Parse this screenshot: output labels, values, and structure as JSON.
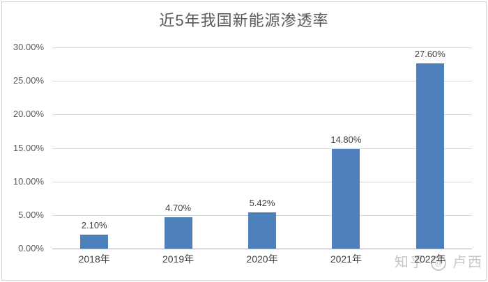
{
  "chart_data": {
    "type": "bar",
    "title": "近5年我国新能源渗透率",
    "categories": [
      "2018年",
      "2019年",
      "2020年",
      "2021年",
      "2022年"
    ],
    "values": [
      2.1,
      4.7,
      5.42,
      14.8,
      27.6
    ],
    "data_labels": [
      "2.10%",
      "4.70%",
      "5.42%",
      "14.80%",
      "27.60%"
    ],
    "yticks": [
      "0.00%",
      "5.00%",
      "10.00%",
      "15.00%",
      "20.00%",
      "25.00%",
      "30.00%"
    ],
    "ytick_step": 5,
    "ylim": [
      0,
      30
    ],
    "xlabel": "",
    "ylabel": "",
    "grid": true,
    "legend": false,
    "bar_color": "#4e81bc"
  },
  "watermark": {
    "brand": "知乎",
    "at": "@",
    "user": "卢西"
  },
  "colors": {
    "bar": "#4e81bc",
    "gridline": "#d9d9d9",
    "axis_line": "#ababab",
    "title_text": "#595959",
    "tick_text": "#595959",
    "label_text": "#3f3f3f",
    "watermark_text": "#c7c7c7",
    "frame_border": "#d2d2d2",
    "background": "#ffffff"
  }
}
